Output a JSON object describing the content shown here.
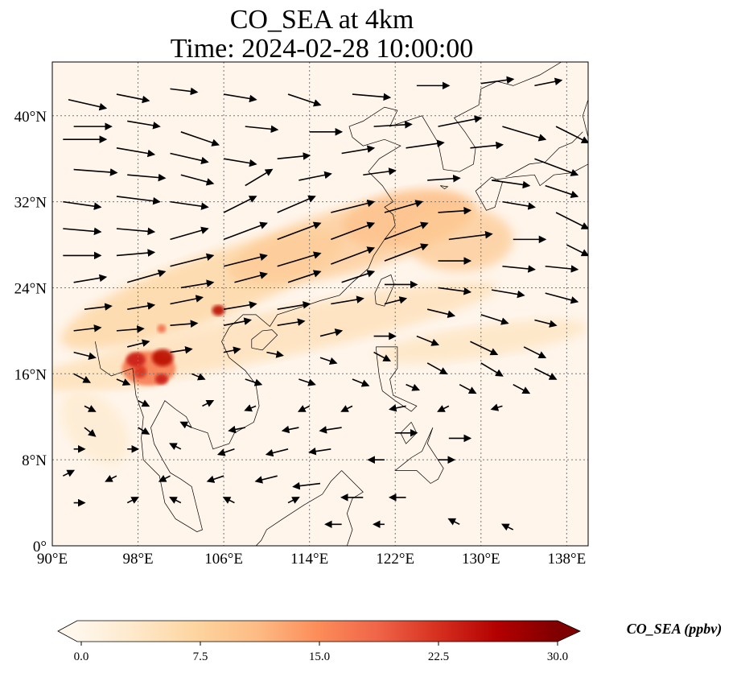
{
  "title": {
    "line1": "CO_SEA at 4km",
    "line2": "Time: 2024-02-28 10:00:00"
  },
  "map": {
    "projection": "plate-carree",
    "lon_range": [
      90,
      140
    ],
    "lat_range": [
      0,
      45
    ],
    "lon_ticks": [
      "90°E",
      "98°E",
      "106°E",
      "114°E",
      "122°E",
      "130°E",
      "138°E"
    ],
    "lat_ticks": [
      "0°",
      "8°N",
      "16°N",
      "24°N",
      "32°N",
      "40°N"
    ],
    "gridlines": "dotted",
    "background_color": "#fff5eb",
    "coastline_color": "#000000"
  },
  "colorbar": {
    "label": "CO_SEA (ppbv)",
    "min": 0.0,
    "max": 30.0,
    "tick_labels": [
      "0.0",
      "7.5",
      "15.0",
      "22.5",
      "30.0"
    ],
    "colormap": "OrRd",
    "colors": [
      "#fff7ec",
      "#fee8c8",
      "#fdd49e",
      "#fdbb84",
      "#fc8d59",
      "#ef6548",
      "#d7301f",
      "#b30000",
      "#7f0000"
    ],
    "extend": "both"
  },
  "plumes": [
    {
      "lon": 104,
      "lat": 23.8,
      "rx": 14,
      "ry": 3,
      "rot": -20,
      "level": 0.25
    },
    {
      "lon": 118,
      "lat": 28.5,
      "rx": 12,
      "ry": 3,
      "rot": -15,
      "level": 0.3
    },
    {
      "lon": 123,
      "lat": 30.5,
      "rx": 6,
      "ry": 2.5,
      "rot": -10,
      "level": 0.35
    },
    {
      "lon": 128,
      "lat": 28.5,
      "rx": 5,
      "ry": 3,
      "rot": 0,
      "level": 0.3
    },
    {
      "lon": 110,
      "lat": 19.5,
      "rx": 22,
      "ry": 2.2,
      "rot": -12,
      "level": 0.18
    },
    {
      "lon": 95,
      "lat": 15.8,
      "rx": 6,
      "ry": 1.2,
      "rot": 0,
      "level": 0.15
    },
    {
      "lon": 94,
      "lat": 11.0,
      "rx": 4,
      "ry": 2.5,
      "rot": 50,
      "level": 0.1
    },
    {
      "lon": 130,
      "lat": 19.0,
      "rx": 10,
      "ry": 1.5,
      "rot": -8,
      "level": 0.15
    },
    {
      "lon": 99.0,
      "lat": 16.5,
      "rx": 2.5,
      "ry": 1.6,
      "rot": 0,
      "level": 0.55
    },
    {
      "lon": 97.8,
      "lat": 17.3,
      "rx": 0.9,
      "ry": 0.7,
      "rot": 0,
      "level": 0.8
    },
    {
      "lon": 100.3,
      "lat": 17.5,
      "rx": 1.0,
      "ry": 0.8,
      "rot": 0,
      "level": 0.85
    },
    {
      "lon": 100.2,
      "lat": 15.5,
      "rx": 0.6,
      "ry": 0.5,
      "rot": 0,
      "level": 0.8
    },
    {
      "lon": 98.2,
      "lat": 16.2,
      "rx": 0.6,
      "ry": 0.6,
      "rot": 0,
      "level": 0.75
    },
    {
      "lon": 105.5,
      "lat": 21.9,
      "rx": 0.6,
      "ry": 0.5,
      "rot": 0,
      "level": 0.85
    },
    {
      "lon": 100.2,
      "lat": 20.2,
      "rx": 0.4,
      "ry": 0.4,
      "rot": 0,
      "level": 0.6
    }
  ],
  "wind_vectors": [
    [
      91.5,
      41.5,
      3.5,
      -0.8
    ],
    [
      96,
      42,
      3,
      -0.6
    ],
    [
      101,
      42.5,
      2.5,
      -0.3
    ],
    [
      106,
      42,
      3,
      -0.5
    ],
    [
      112,
      42,
      3,
      -1
    ],
    [
      118,
      42,
      3.5,
      -0.3
    ],
    [
      124,
      42.8,
      3,
      0
    ],
    [
      130,
      43,
      3,
      0.4
    ],
    [
      135,
      42.8,
      2.5,
      0.5
    ],
    [
      92,
      39,
      3.5,
      0
    ],
    [
      97,
      39.5,
      3,
      -0.5
    ],
    [
      102,
      38.5,
      3.5,
      -1.2
    ],
    [
      108,
      39,
      3,
      -0.3
    ],
    [
      114,
      38.5,
      3,
      0
    ],
    [
      120,
      39,
      3.5,
      0.2
    ],
    [
      126,
      39,
      4,
      0.8
    ],
    [
      132,
      39,
      4,
      -1.2
    ],
    [
      137,
      39,
      3,
      -1.5
    ],
    [
      91,
      37.8,
      4,
      0
    ],
    [
      96,
      37,
      3.5,
      -0.6
    ],
    [
      101,
      36.5,
      3.5,
      -0.8
    ],
    [
      106,
      36,
      3,
      -0.5
    ],
    [
      111,
      36,
      3,
      0.3
    ],
    [
      117,
      36.5,
      3,
      0.5
    ],
    [
      123,
      37,
      3.5,
      0.5
    ],
    [
      129,
      37,
      3,
      0.3
    ],
    [
      135,
      36,
      4,
      -1.5
    ],
    [
      92,
      35,
      4,
      -0.3
    ],
    [
      97,
      34.5,
      3.5,
      -0.3
    ],
    [
      102,
      34.5,
      3,
      -0.8
    ],
    [
      108,
      33.5,
      2.5,
      1.5
    ],
    [
      113,
      34,
      3,
      0.6
    ],
    [
      119,
      34.5,
      3,
      0.4
    ],
    [
      125,
      34,
      3,
      0.2
    ],
    [
      131,
      34,
      3.5,
      -0.5
    ],
    [
      136,
      33.5,
      3,
      -1
    ],
    [
      91,
      32,
      3.5,
      -0.5
    ],
    [
      96,
      32.5,
      4,
      -0.5
    ],
    [
      101,
      32,
      3.5,
      -0.5
    ],
    [
      106,
      31,
      3,
      1.5
    ],
    [
      111,
      31,
      3.5,
      1.5
    ],
    [
      116,
      31,
      4,
      1
    ],
    [
      121,
      31,
      3.5,
      1
    ],
    [
      126,
      31,
      3,
      0.2
    ],
    [
      132,
      32,
      3,
      -0.5
    ],
    [
      137,
      31,
      3,
      -1.5
    ],
    [
      91,
      29.5,
      3.5,
      -0.3
    ],
    [
      96,
      29.5,
      3.5,
      -0.3
    ],
    [
      101,
      28.5,
      3.5,
      1
    ],
    [
      106,
      28.5,
      4,
      1.5
    ],
    [
      111,
      28.5,
      4,
      1.5
    ],
    [
      116,
      28.5,
      4,
      1.5
    ],
    [
      121,
      28.5,
      4,
      1.5
    ],
    [
      127,
      28.5,
      4,
      0.5
    ],
    [
      133,
      28.5,
      3,
      0
    ],
    [
      138,
      28,
      2,
      -1
    ],
    [
      91,
      27,
      3.5,
      0
    ],
    [
      96,
      27,
      3.5,
      0.3
    ],
    [
      101,
      26,
      4,
      1
    ],
    [
      106,
      26,
      4,
      1
    ],
    [
      111,
      26,
      4,
      1.2
    ],
    [
      116,
      26.2,
      4,
      1.5
    ],
    [
      121,
      26.5,
      4,
      1.5
    ],
    [
      126,
      26.5,
      3,
      0
    ],
    [
      132,
      26,
      3,
      -0.3
    ],
    [
      136,
      26,
      3,
      -0.3
    ],
    [
      92,
      24.5,
      3,
      0.5
    ],
    [
      97,
      24.5,
      3.5,
      1
    ],
    [
      102,
      24,
      3,
      0.5
    ],
    [
      107,
      24.5,
      3,
      0.8
    ],
    [
      112,
      24.5,
      3,
      1
    ],
    [
      117,
      24.5,
      3,
      1
    ],
    [
      121,
      24.3,
      3,
      0
    ],
    [
      126,
      24,
      3,
      -0.4
    ],
    [
      131,
      23.8,
      3,
      -0.5
    ],
    [
      136,
      23.5,
      3,
      -0.8
    ],
    [
      93,
      22,
      2.5,
      0.3
    ],
    [
      97,
      22,
      2.5,
      0.4
    ],
    [
      101,
      22.5,
      3,
      0.6
    ],
    [
      106,
      22,
      3,
      0.5
    ],
    [
      111,
      22,
      3,
      0.5
    ],
    [
      116,
      22.5,
      3,
      0.5
    ],
    [
      121,
      22.5,
      2,
      0.5
    ],
    [
      125,
      22,
      2.5,
      -0.6
    ],
    [
      130,
      21.5,
      2.5,
      -0.8
    ],
    [
      135,
      21,
      2,
      -0.5
    ],
    [
      92,
      20,
      2.5,
      0.3
    ],
    [
      96,
      20,
      2.5,
      0.2
    ],
    [
      101,
      20.5,
      2.5,
      0.2
    ],
    [
      106,
      20.5,
      2.5,
      0.5
    ],
    [
      111,
      20.5,
      2.5,
      0.4
    ],
    [
      115,
      19.5,
      2,
      0.5
    ],
    [
      120,
      19.5,
      2,
      0
    ],
    [
      124,
      19.5,
      2,
      -0.8
    ],
    [
      129,
      19,
      2.5,
      -1.2
    ],
    [
      134,
      18.5,
      2,
      -1
    ],
    [
      92,
      18,
      2,
      -0.5
    ],
    [
      97,
      18.5,
      2,
      0.5
    ],
    [
      101,
      18,
      2,
      0.3
    ],
    [
      106,
      18,
      1.5,
      0.3
    ],
    [
      110,
      18,
      1.5,
      -0.3
    ],
    [
      115,
      17.5,
      1.5,
      -0.5
    ],
    [
      120,
      18,
      1.5,
      -0.8
    ],
    [
      125,
      17,
      1.8,
      -1
    ],
    [
      130,
      17,
      2,
      -1.2
    ],
    [
      135,
      16.5,
      2,
      -1
    ],
    [
      92,
      16,
      1.5,
      -0.8
    ],
    [
      96,
      15.5,
      1.2,
      -0.5
    ],
    [
      103,
      16,
      1.2,
      -0.5
    ],
    [
      108,
      15.5,
      1.5,
      -0.5
    ],
    [
      113,
      15.5,
      1.5,
      -0.5
    ],
    [
      118,
      15.5,
      1.5,
      -0.6
    ],
    [
      123,
      15,
      1.2,
      -0.5
    ],
    [
      128,
      15,
      1.5,
      -0.8
    ],
    [
      133,
      15,
      1.5,
      -0.8
    ],
    [
      93,
      13,
      1,
      -0.5
    ],
    [
      98,
      13.5,
      1,
      -0.5
    ],
    [
      104,
      13,
      1,
      0.5
    ],
    [
      109,
      13,
      -1,
      -0.4
    ],
    [
      114,
      13,
      -1,
      -0.5
    ],
    [
      118,
      13,
      -1,
      -0.5
    ],
    [
      123,
      13,
      -1.5,
      -0.3
    ],
    [
      127,
      13,
      -1,
      -0.5
    ],
    [
      132,
      13,
      -1,
      -0.3
    ],
    [
      93,
      11,
      1,
      -0.8
    ],
    [
      98,
      11,
      1,
      -0.6
    ],
    [
      103,
      11,
      -1,
      0.5
    ],
    [
      108,
      11,
      -1.5,
      -0.3
    ],
    [
      113,
      11,
      -1.5,
      -0.3
    ],
    [
      117,
      11,
      -2,
      -0.3
    ],
    [
      122,
      10.5,
      2,
      0
    ],
    [
      127,
      10,
      2,
      0
    ],
    [
      92,
      9,
      1,
      0
    ],
    [
      97,
      9,
      1,
      0
    ],
    [
      102,
      9,
      -1,
      0.5
    ],
    [
      107,
      9,
      -1.5,
      -0.5
    ],
    [
      112,
      9,
      -2,
      -0.5
    ],
    [
      116,
      9,
      -2,
      -0.3
    ],
    [
      121,
      8,
      -1.5,
      0
    ],
    [
      126,
      8,
      1.5,
      0
    ],
    [
      91,
      6.5,
      1,
      0.5
    ],
    [
      96,
      6.5,
      -1,
      -0.5
    ],
    [
      101,
      6.5,
      -1,
      -0.5
    ],
    [
      106,
      6.5,
      -1.5,
      -0.5
    ],
    [
      111,
      6.5,
      -2,
      -0.5
    ],
    [
      115,
      5.8,
      -2.5,
      -0.3
    ],
    [
      119,
      4.5,
      -2,
      0
    ],
    [
      123,
      4.5,
      -1.5,
      0
    ],
    [
      92,
      4,
      1,
      0
    ],
    [
      97,
      4,
      1,
      0.5
    ],
    [
      102,
      4,
      -1,
      0.5
    ],
    [
      107,
      4,
      -1,
      0.5
    ],
    [
      112,
      4,
      1,
      0.5
    ],
    [
      117,
      2,
      -1.5,
      0
    ],
    [
      121,
      2,
      -1,
      0
    ],
    [
      128,
      2,
      -1,
      0.5
    ],
    [
      133,
      1.5,
      -1,
      0.5
    ]
  ]
}
